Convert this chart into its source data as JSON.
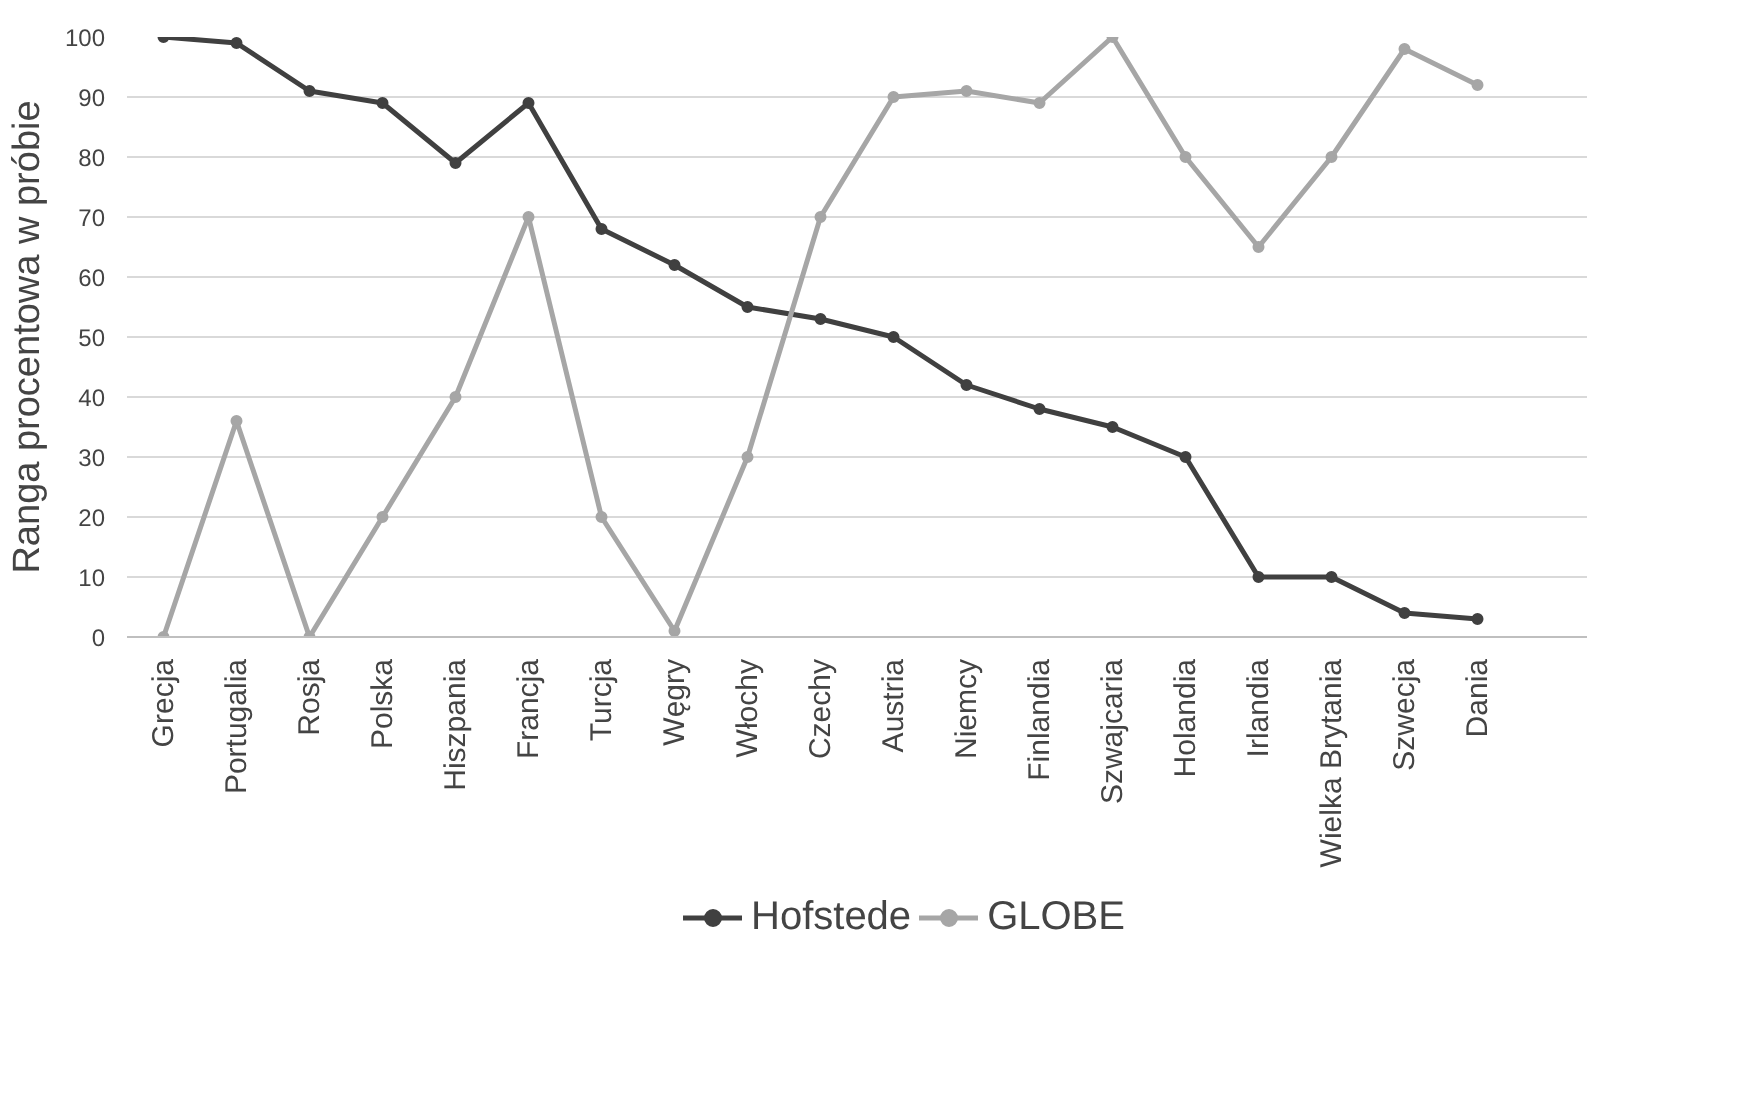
{
  "chart_data": {
    "type": "line",
    "ylabel": "Ranga procentowa w próbie",
    "categories": [
      "Grecja",
      "Portugalia",
      "Rosja",
      "Polska",
      "Hiszpania",
      "Francja",
      "Turcja",
      "Węgry",
      "Włochy",
      "Czechy",
      "Austria",
      "Niemcy",
      "Finlandia",
      "Szwajcaria",
      "Holandia",
      "Irlandia",
      "Wielka Brytania",
      "Szwecja",
      "Dania",
      null
    ],
    "series": [
      {
        "name": "Hofstede",
        "color": "#404040",
        "values": [
          100,
          99,
          91,
          89,
          79,
          89,
          68,
          62,
          55,
          53,
          50,
          42,
          38,
          35,
          30,
          10,
          10,
          4,
          3,
          null
        ]
      },
      {
        "name": "GLOBE",
        "color": "#a6a6a6",
        "values": [
          0,
          36,
          0,
          20,
          40,
          70,
          20,
          1,
          30,
          70,
          90,
          91,
          89,
          100,
          80,
          65,
          80,
          98,
          92,
          null
        ]
      }
    ],
    "ylim": [
      0,
      100
    ],
    "yticks": [
      0,
      10,
      20,
      30,
      40,
      50,
      60,
      70,
      80,
      90,
      100
    ],
    "grid": "y",
    "legend": "bottom",
    "marker": "circle",
    "line_style": "solid"
  }
}
